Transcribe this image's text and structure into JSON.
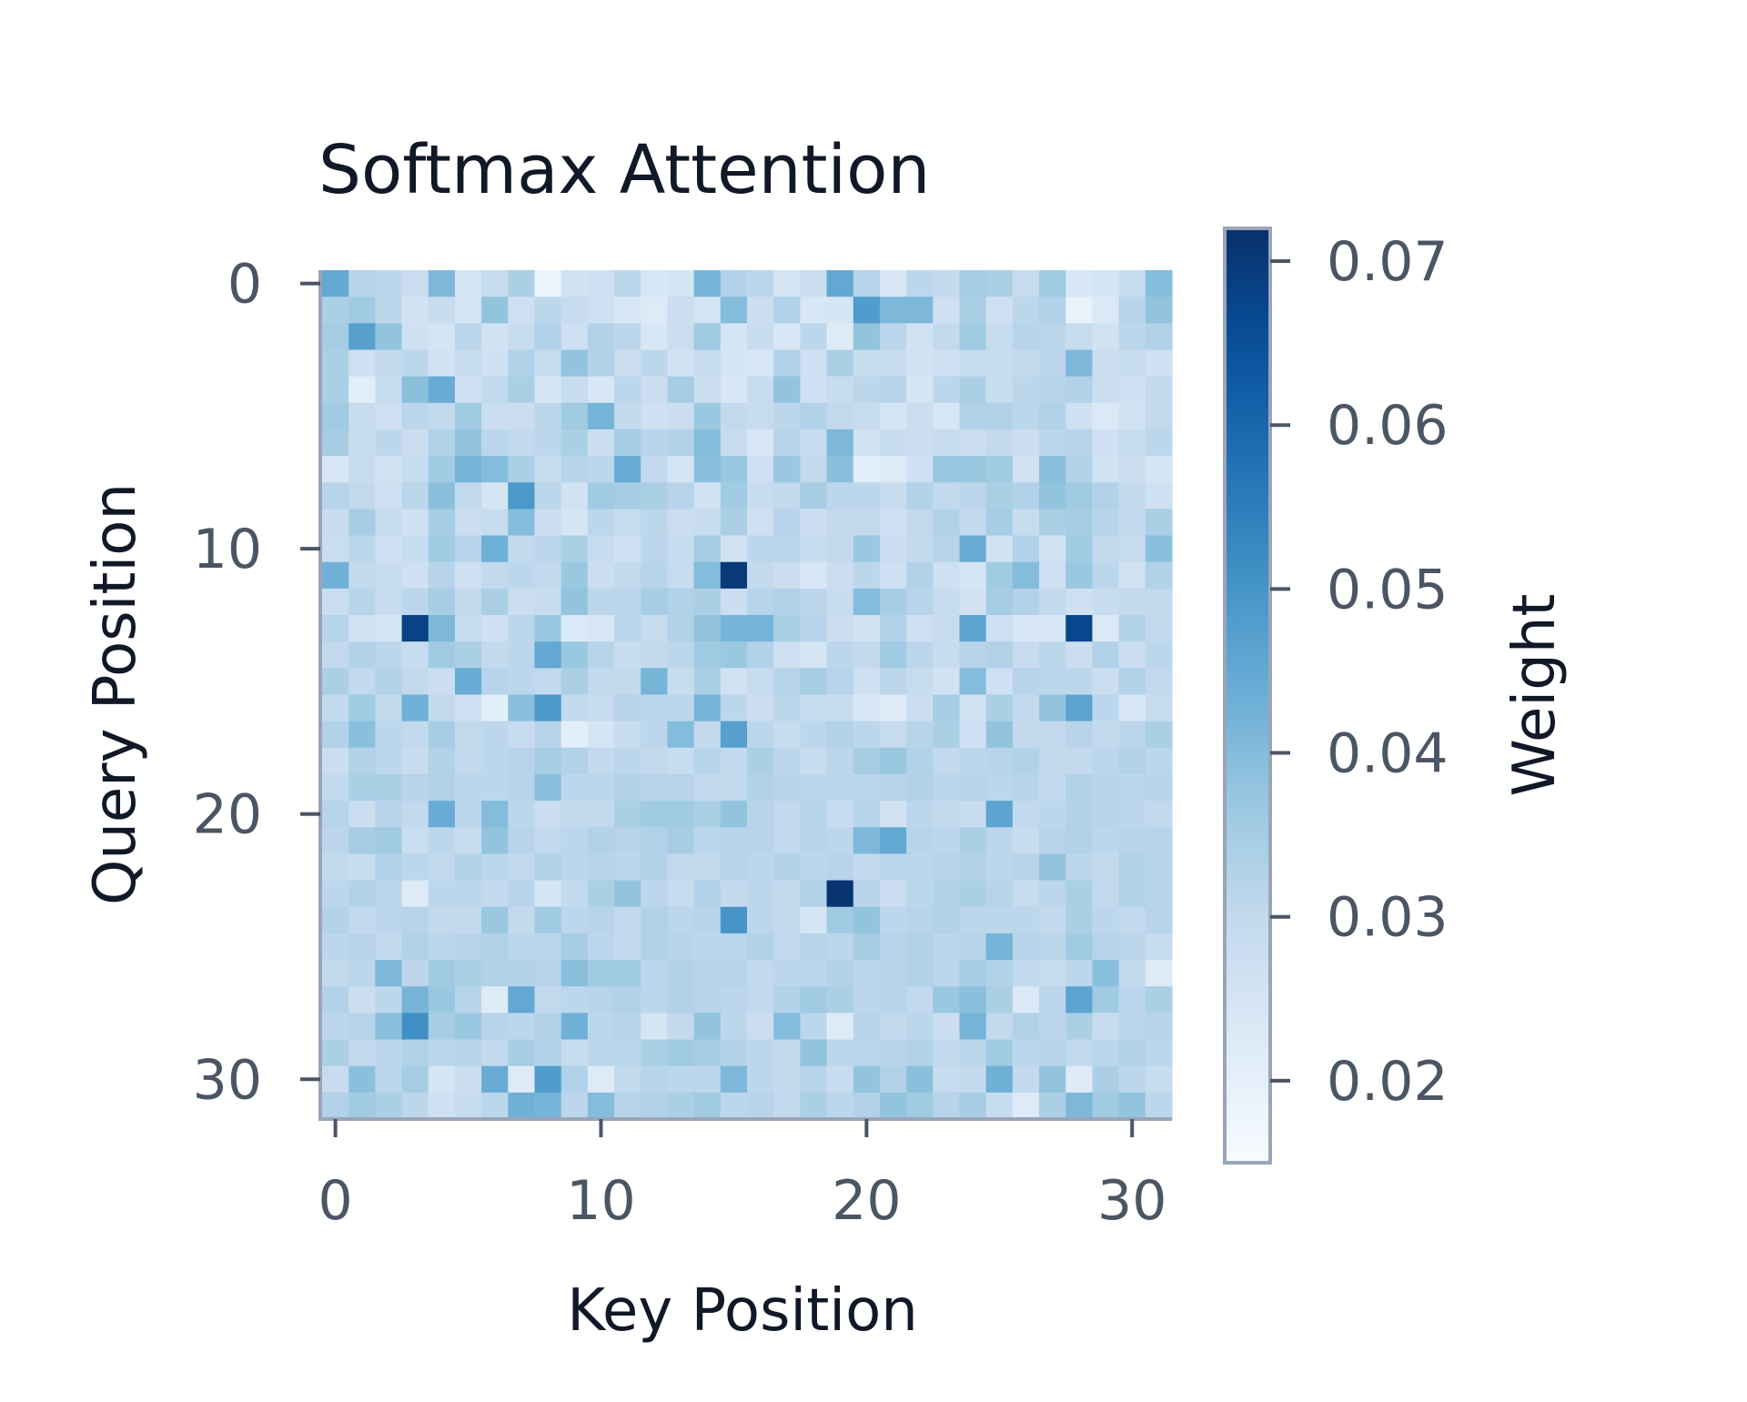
{
  "chart_data": {
    "type": "heatmap",
    "title": "Softmax Attention",
    "xlabel": "Key Position",
    "ylabel": "Query Position",
    "rows": 32,
    "cols": 32,
    "x_ticks": [
      0,
      10,
      20,
      30
    ],
    "y_ticks": [
      0,
      10,
      20,
      30
    ],
    "colorbar": {
      "label": "Weight",
      "min": 0.015,
      "max": 0.072,
      "ticks": [
        "0.02",
        "0.03",
        "0.04",
        "0.05",
        "0.06",
        "0.07"
      ],
      "tick_values": [
        0.02,
        0.03,
        0.04,
        0.05,
        0.06,
        0.07
      ]
    },
    "colormap": "Blues",
    "grid": false,
    "values": [
      [
        0.045,
        0.032,
        0.031,
        0.028,
        0.041,
        0.025,
        0.029,
        0.034,
        0.018,
        0.026,
        0.027,
        0.031,
        0.024,
        0.025,
        0.042,
        0.033,
        0.031,
        0.025,
        0.028,
        0.045,
        0.032,
        0.024,
        0.031,
        0.03,
        0.035,
        0.034,
        0.029,
        0.036,
        0.024,
        0.025,
        0.029,
        0.04
      ],
      [
        0.034,
        0.036,
        0.031,
        0.026,
        0.029,
        0.025,
        0.038,
        0.027,
        0.031,
        0.029,
        0.027,
        0.024,
        0.022,
        0.028,
        0.025,
        0.04,
        0.028,
        0.033,
        0.024,
        0.025,
        0.048,
        0.041,
        0.041,
        0.027,
        0.034,
        0.027,
        0.031,
        0.033,
        0.019,
        0.023,
        0.032,
        0.038
      ],
      [
        0.035,
        0.047,
        0.038,
        0.027,
        0.025,
        0.031,
        0.026,
        0.029,
        0.033,
        0.027,
        0.033,
        0.031,
        0.024,
        0.028,
        0.036,
        0.025,
        0.029,
        0.024,
        0.031,
        0.022,
        0.038,
        0.031,
        0.026,
        0.03,
        0.036,
        0.029,
        0.032,
        0.031,
        0.029,
        0.026,
        0.031,
        0.033
      ],
      [
        0.034,
        0.027,
        0.03,
        0.031,
        0.026,
        0.029,
        0.027,
        0.033,
        0.029,
        0.038,
        0.033,
        0.028,
        0.031,
        0.026,
        0.029,
        0.025,
        0.024,
        0.033,
        0.027,
        0.034,
        0.029,
        0.029,
        0.026,
        0.027,
        0.029,
        0.029,
        0.03,
        0.031,
        0.041,
        0.028,
        0.029,
        0.027
      ],
      [
        0.034,
        0.021,
        0.029,
        0.039,
        0.044,
        0.027,
        0.03,
        0.034,
        0.025,
        0.029,
        0.024,
        0.031,
        0.028,
        0.035,
        0.028,
        0.024,
        0.029,
        0.038,
        0.027,
        0.029,
        0.031,
        0.032,
        0.025,
        0.031,
        0.034,
        0.029,
        0.031,
        0.032,
        0.033,
        0.028,
        0.027,
        0.03
      ],
      [
        0.036,
        0.029,
        0.027,
        0.031,
        0.03,
        0.036,
        0.028,
        0.028,
        0.031,
        0.036,
        0.042,
        0.03,
        0.027,
        0.028,
        0.037,
        0.03,
        0.029,
        0.031,
        0.033,
        0.03,
        0.029,
        0.025,
        0.028,
        0.024,
        0.033,
        0.033,
        0.031,
        0.033,
        0.027,
        0.023,
        0.026,
        0.03
      ],
      [
        0.035,
        0.029,
        0.031,
        0.028,
        0.033,
        0.038,
        0.031,
        0.03,
        0.031,
        0.034,
        0.028,
        0.035,
        0.032,
        0.033,
        0.04,
        0.029,
        0.024,
        0.032,
        0.029,
        0.041,
        0.026,
        0.029,
        0.028,
        0.029,
        0.028,
        0.03,
        0.028,
        0.031,
        0.032,
        0.027,
        0.029,
        0.031
      ],
      [
        0.024,
        0.029,
        0.026,
        0.029,
        0.036,
        0.042,
        0.04,
        0.034,
        0.029,
        0.032,
        0.031,
        0.044,
        0.03,
        0.025,
        0.039,
        0.037,
        0.027,
        0.037,
        0.03,
        0.039,
        0.021,
        0.022,
        0.027,
        0.037,
        0.037,
        0.036,
        0.026,
        0.039,
        0.033,
        0.026,
        0.028,
        0.025
      ],
      [
        0.032,
        0.03,
        0.027,
        0.031,
        0.039,
        0.03,
        0.025,
        0.049,
        0.031,
        0.026,
        0.036,
        0.035,
        0.034,
        0.032,
        0.026,
        0.036,
        0.029,
        0.03,
        0.035,
        0.031,
        0.031,
        0.029,
        0.033,
        0.03,
        0.031,
        0.034,
        0.033,
        0.038,
        0.036,
        0.033,
        0.03,
        0.027
      ],
      [
        0.029,
        0.035,
        0.029,
        0.027,
        0.035,
        0.028,
        0.029,
        0.04,
        0.028,
        0.025,
        0.031,
        0.029,
        0.031,
        0.028,
        0.029,
        0.034,
        0.027,
        0.032,
        0.028,
        0.03,
        0.03,
        0.027,
        0.03,
        0.033,
        0.03,
        0.035,
        0.029,
        0.034,
        0.035,
        0.032,
        0.03,
        0.034
      ],
      [
        0.028,
        0.031,
        0.027,
        0.029,
        0.036,
        0.032,
        0.043,
        0.03,
        0.031,
        0.034,
        0.029,
        0.027,
        0.031,
        0.029,
        0.035,
        0.026,
        0.031,
        0.031,
        0.029,
        0.03,
        0.037,
        0.028,
        0.03,
        0.032,
        0.044,
        0.026,
        0.033,
        0.026,
        0.036,
        0.03,
        0.029,
        0.039
      ],
      [
        0.043,
        0.03,
        0.029,
        0.027,
        0.032,
        0.027,
        0.03,
        0.031,
        0.03,
        0.037,
        0.028,
        0.03,
        0.032,
        0.029,
        0.04,
        0.07,
        0.03,
        0.028,
        0.024,
        0.028,
        0.031,
        0.027,
        0.033,
        0.027,
        0.025,
        0.036,
        0.04,
        0.027,
        0.037,
        0.031,
        0.026,
        0.033
      ],
      [
        0.028,
        0.032,
        0.029,
        0.031,
        0.035,
        0.03,
        0.034,
        0.028,
        0.029,
        0.038,
        0.031,
        0.031,
        0.035,
        0.033,
        0.034,
        0.028,
        0.032,
        0.033,
        0.031,
        0.029,
        0.04,
        0.035,
        0.032,
        0.029,
        0.026,
        0.035,
        0.033,
        0.03,
        0.027,
        0.029,
        0.03,
        0.03
      ],
      [
        0.032,
        0.026,
        0.025,
        0.068,
        0.041,
        0.029,
        0.027,
        0.031,
        0.037,
        0.023,
        0.024,
        0.031,
        0.029,
        0.033,
        0.038,
        0.042,
        0.042,
        0.034,
        0.032,
        0.028,
        0.026,
        0.033,
        0.027,
        0.029,
        0.046,
        0.027,
        0.024,
        0.024,
        0.067,
        0.023,
        0.033,
        0.03
      ],
      [
        0.03,
        0.033,
        0.031,
        0.029,
        0.036,
        0.034,
        0.03,
        0.031,
        0.045,
        0.037,
        0.032,
        0.029,
        0.03,
        0.031,
        0.036,
        0.037,
        0.033,
        0.027,
        0.025,
        0.031,
        0.03,
        0.036,
        0.031,
        0.029,
        0.032,
        0.033,
        0.029,
        0.031,
        0.028,
        0.033,
        0.028,
        0.031
      ],
      [
        0.034,
        0.03,
        0.033,
        0.03,
        0.028,
        0.044,
        0.032,
        0.031,
        0.03,
        0.034,
        0.03,
        0.03,
        0.042,
        0.029,
        0.034,
        0.026,
        0.029,
        0.032,
        0.035,
        0.032,
        0.027,
        0.031,
        0.029,
        0.026,
        0.04,
        0.027,
        0.032,
        0.031,
        0.031,
        0.028,
        0.033,
        0.03
      ],
      [
        0.03,
        0.036,
        0.03,
        0.043,
        0.03,
        0.027,
        0.021,
        0.039,
        0.049,
        0.03,
        0.029,
        0.032,
        0.031,
        0.031,
        0.042,
        0.031,
        0.028,
        0.031,
        0.029,
        0.029,
        0.024,
        0.022,
        0.028,
        0.035,
        0.026,
        0.034,
        0.03,
        0.038,
        0.046,
        0.031,
        0.024,
        0.029
      ],
      [
        0.033,
        0.039,
        0.031,
        0.03,
        0.035,
        0.03,
        0.031,
        0.029,
        0.032,
        0.021,
        0.025,
        0.029,
        0.031,
        0.04,
        0.03,
        0.047,
        0.031,
        0.029,
        0.031,
        0.033,
        0.031,
        0.029,
        0.032,
        0.034,
        0.027,
        0.038,
        0.03,
        0.03,
        0.032,
        0.03,
        0.031,
        0.034
      ],
      [
        0.028,
        0.033,
        0.031,
        0.029,
        0.033,
        0.03,
        0.031,
        0.032,
        0.035,
        0.033,
        0.03,
        0.031,
        0.03,
        0.029,
        0.032,
        0.03,
        0.034,
        0.031,
        0.029,
        0.031,
        0.035,
        0.037,
        0.033,
        0.03,
        0.031,
        0.032,
        0.033,
        0.03,
        0.03,
        0.031,
        0.033,
        0.031
      ],
      [
        0.03,
        0.034,
        0.034,
        0.032,
        0.033,
        0.031,
        0.031,
        0.032,
        0.039,
        0.031,
        0.031,
        0.033,
        0.032,
        0.032,
        0.03,
        0.03,
        0.033,
        0.032,
        0.031,
        0.031,
        0.031,
        0.032,
        0.033,
        0.031,
        0.032,
        0.031,
        0.032,
        0.03,
        0.033,
        0.032,
        0.031,
        0.032
      ],
      [
        0.032,
        0.028,
        0.032,
        0.03,
        0.044,
        0.031,
        0.04,
        0.031,
        0.028,
        0.03,
        0.03,
        0.034,
        0.036,
        0.036,
        0.034,
        0.038,
        0.032,
        0.03,
        0.032,
        0.029,
        0.032,
        0.026,
        0.031,
        0.03,
        0.029,
        0.046,
        0.03,
        0.031,
        0.033,
        0.032,
        0.031,
        0.03
      ],
      [
        0.031,
        0.035,
        0.036,
        0.028,
        0.031,
        0.029,
        0.038,
        0.032,
        0.03,
        0.031,
        0.033,
        0.032,
        0.033,
        0.035,
        0.031,
        0.032,
        0.032,
        0.03,
        0.032,
        0.031,
        0.041,
        0.045,
        0.032,
        0.031,
        0.034,
        0.031,
        0.029,
        0.032,
        0.033,
        0.031,
        0.032,
        0.032
      ],
      [
        0.03,
        0.029,
        0.033,
        0.031,
        0.03,
        0.033,
        0.031,
        0.03,
        0.033,
        0.031,
        0.032,
        0.031,
        0.033,
        0.03,
        0.03,
        0.032,
        0.031,
        0.033,
        0.031,
        0.032,
        0.03,
        0.031,
        0.031,
        0.032,
        0.033,
        0.031,
        0.032,
        0.038,
        0.031,
        0.03,
        0.033,
        0.032
      ],
      [
        0.031,
        0.033,
        0.031,
        0.022,
        0.031,
        0.031,
        0.03,
        0.032,
        0.025,
        0.03,
        0.034,
        0.038,
        0.031,
        0.029,
        0.033,
        0.03,
        0.031,
        0.03,
        0.033,
        0.071,
        0.032,
        0.028,
        0.031,
        0.033,
        0.034,
        0.032,
        0.029,
        0.031,
        0.034,
        0.03,
        0.033,
        0.032
      ],
      [
        0.033,
        0.03,
        0.031,
        0.032,
        0.03,
        0.03,
        0.037,
        0.03,
        0.036,
        0.031,
        0.032,
        0.03,
        0.033,
        0.031,
        0.032,
        0.05,
        0.031,
        0.03,
        0.025,
        0.036,
        0.038,
        0.031,
        0.032,
        0.033,
        0.031,
        0.031,
        0.031,
        0.03,
        0.034,
        0.031,
        0.03,
        0.032
      ],
      [
        0.031,
        0.032,
        0.03,
        0.033,
        0.031,
        0.032,
        0.033,
        0.031,
        0.031,
        0.035,
        0.031,
        0.03,
        0.033,
        0.032,
        0.031,
        0.031,
        0.033,
        0.03,
        0.032,
        0.031,
        0.035,
        0.032,
        0.033,
        0.031,
        0.032,
        0.042,
        0.032,
        0.031,
        0.036,
        0.032,
        0.031,
        0.029
      ],
      [
        0.03,
        0.031,
        0.041,
        0.031,
        0.036,
        0.034,
        0.033,
        0.033,
        0.032,
        0.039,
        0.036,
        0.036,
        0.031,
        0.033,
        0.032,
        0.032,
        0.03,
        0.031,
        0.031,
        0.033,
        0.031,
        0.032,
        0.033,
        0.031,
        0.035,
        0.033,
        0.03,
        0.029,
        0.031,
        0.039,
        0.03,
        0.022
      ],
      [
        0.033,
        0.028,
        0.031,
        0.042,
        0.037,
        0.032,
        0.022,
        0.045,
        0.03,
        0.031,
        0.032,
        0.033,
        0.031,
        0.033,
        0.032,
        0.031,
        0.03,
        0.033,
        0.036,
        0.034,
        0.031,
        0.032,
        0.03,
        0.037,
        0.039,
        0.034,
        0.023,
        0.031,
        0.046,
        0.036,
        0.031,
        0.034
      ],
      [
        0.031,
        0.032,
        0.039,
        0.051,
        0.035,
        0.037,
        0.032,
        0.031,
        0.033,
        0.043,
        0.031,
        0.032,
        0.025,
        0.03,
        0.038,
        0.031,
        0.028,
        0.04,
        0.031,
        0.022,
        0.032,
        0.03,
        0.031,
        0.028,
        0.042,
        0.03,
        0.033,
        0.031,
        0.034,
        0.029,
        0.031,
        0.032
      ],
      [
        0.034,
        0.03,
        0.031,
        0.033,
        0.031,
        0.032,
        0.03,
        0.035,
        0.033,
        0.029,
        0.031,
        0.031,
        0.034,
        0.036,
        0.035,
        0.033,
        0.031,
        0.03,
        0.038,
        0.031,
        0.031,
        0.032,
        0.033,
        0.03,
        0.031,
        0.036,
        0.031,
        0.032,
        0.03,
        0.031,
        0.033,
        0.031
      ],
      [
        0.029,
        0.039,
        0.031,
        0.035,
        0.025,
        0.028,
        0.044,
        0.022,
        0.048,
        0.033,
        0.022,
        0.03,
        0.032,
        0.031,
        0.031,
        0.041,
        0.031,
        0.03,
        0.032,
        0.029,
        0.038,
        0.033,
        0.039,
        0.029,
        0.03,
        0.043,
        0.03,
        0.038,
        0.022,
        0.034,
        0.031,
        0.029
      ],
      [
        0.033,
        0.036,
        0.034,
        0.031,
        0.027,
        0.029,
        0.031,
        0.043,
        0.042,
        0.031,
        0.04,
        0.032,
        0.033,
        0.034,
        0.036,
        0.031,
        0.032,
        0.03,
        0.034,
        0.031,
        0.033,
        0.038,
        0.036,
        0.032,
        0.035,
        0.029,
        0.022,
        0.034,
        0.041,
        0.036,
        0.038,
        0.031
      ]
    ]
  }
}
